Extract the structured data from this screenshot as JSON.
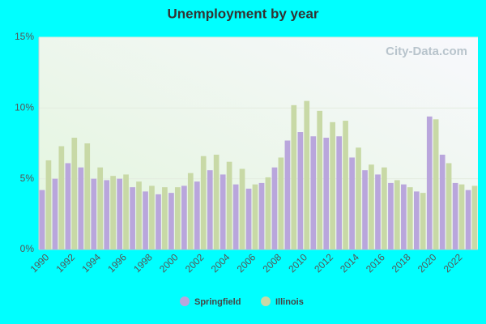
{
  "chart_data": {
    "type": "bar",
    "title": "Unemployment by year",
    "watermark": "City-Data.com",
    "categories": [
      "1990",
      null,
      "1992",
      null,
      "1994",
      null,
      "1996",
      null,
      "1998",
      null,
      "2000",
      null,
      "2002",
      null,
      "2004",
      null,
      "2006",
      null,
      "2008",
      null,
      "2010",
      null,
      "2012",
      null,
      "2014",
      null,
      "2016",
      null,
      "2018",
      null,
      "2020",
      null,
      "2022",
      null
    ],
    "series": [
      {
        "name": "Springfield",
        "color": "#b9a6dc",
        "values": [
          4.2,
          5.0,
          6.1,
          5.8,
          5.0,
          4.9,
          5.0,
          4.4,
          4.1,
          3.9,
          4.0,
          4.5,
          4.8,
          5.6,
          5.3,
          4.6,
          4.3,
          4.7,
          5.8,
          7.7,
          8.3,
          8.0,
          7.9,
          8.0,
          6.5,
          5.6,
          5.3,
          4.7,
          4.6,
          4.1,
          9.4,
          6.7,
          4.7,
          4.2
        ]
      },
      {
        "name": "Illinois",
        "color": "#c8d9a6",
        "values": [
          6.3,
          7.3,
          7.9,
          7.5,
          5.8,
          5.2,
          5.3,
          4.8,
          4.5,
          4.4,
          4.4,
          5.4,
          6.6,
          6.7,
          6.2,
          5.7,
          4.6,
          5.1,
          6.5,
          10.2,
          10.5,
          9.8,
          9.0,
          9.1,
          7.2,
          6.0,
          5.8,
          4.9,
          4.4,
          4.0,
          9.2,
          6.1,
          4.6,
          4.5
        ]
      }
    ],
    "ylim": [
      0,
      15
    ],
    "yticks": [
      {
        "value": 0,
        "label": "0%"
      },
      {
        "value": 5,
        "label": "5%"
      },
      {
        "value": 10,
        "label": "10%"
      },
      {
        "value": 15,
        "label": "15%"
      }
    ],
    "grid": true,
    "legend": "bottom"
  }
}
